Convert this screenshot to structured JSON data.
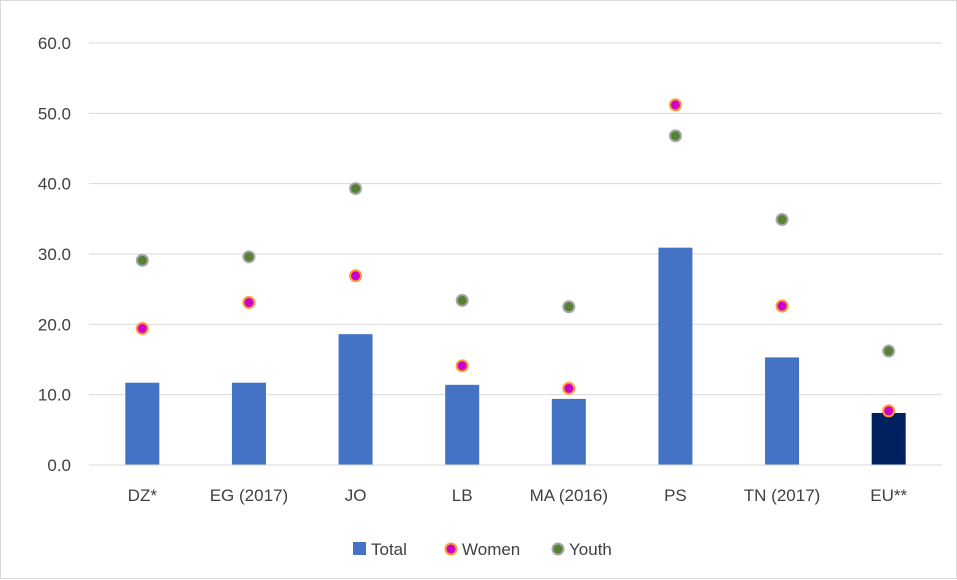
{
  "chart_data": {
    "type": "bar",
    "categories": [
      "DZ*",
      "EG (2017)",
      "JO",
      "LB",
      "MA (2016)",
      "PS",
      "TN (2017)",
      "EU**"
    ],
    "ylim": [
      0,
      60
    ],
    "yticks": [
      "0.0",
      "10.0",
      "20.0",
      "30.0",
      "40.0",
      "50.0",
      "60.0"
    ],
    "grid": true,
    "legend_position": "bottom",
    "series": [
      {
        "name": "Total",
        "kind": "bar",
        "color": "#4472c4",
        "highlight_color": "#002060",
        "highlight_index": 7,
        "values": [
          11.7,
          11.7,
          18.6,
          11.4,
          9.4,
          30.9,
          15.3,
          7.4
        ]
      },
      {
        "name": "Women",
        "kind": "marker",
        "fill": "#cc00cc",
        "stroke": "#ff9933",
        "values": [
          19.4,
          23.1,
          26.9,
          14.1,
          10.9,
          51.2,
          22.6,
          7.7
        ]
      },
      {
        "name": "Youth",
        "kind": "marker",
        "fill": "#548235",
        "stroke": "#a5a5a5",
        "values": [
          29.1,
          29.6,
          39.3,
          23.4,
          22.5,
          46.8,
          34.9,
          16.2
        ]
      }
    ]
  }
}
